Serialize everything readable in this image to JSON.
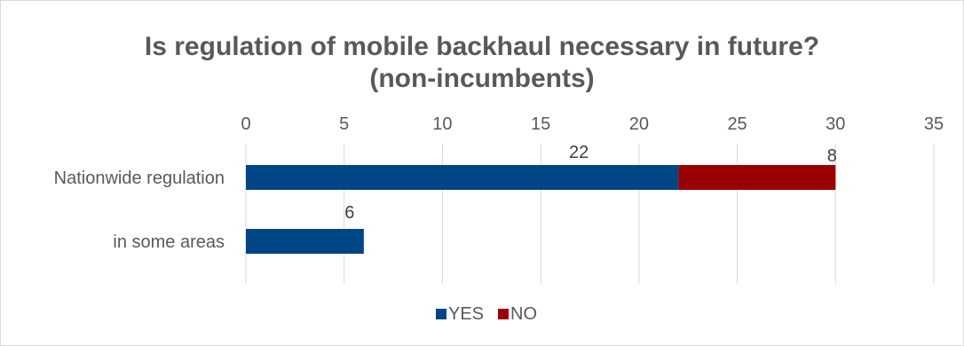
{
  "chart_data": {
    "type": "bar",
    "orientation": "horizontal",
    "stacked": true,
    "title": [
      "Is regulation of mobile backhaul necessary in future?",
      "(non-incumbents)"
    ],
    "categories": [
      "Nationwide regulation",
      "in some areas"
    ],
    "series": [
      {
        "name": "YES",
        "color": "#004586",
        "values": [
          22,
          6
        ]
      },
      {
        "name": "NO",
        "color": "#990000",
        "values": [
          8,
          0
        ]
      }
    ],
    "data_labels": [
      {
        "series": 0,
        "category": 0,
        "text": "22"
      },
      {
        "series": 1,
        "category": 0,
        "text": "8"
      },
      {
        "series": 0,
        "category": 1,
        "text": "6"
      }
    ],
    "xlim": [
      0,
      35
    ],
    "xticks": [
      "0",
      "5",
      "10",
      "15",
      "20",
      "25",
      "30",
      "35"
    ],
    "grid": true,
    "axis_position": "top",
    "legend": "bottom"
  }
}
